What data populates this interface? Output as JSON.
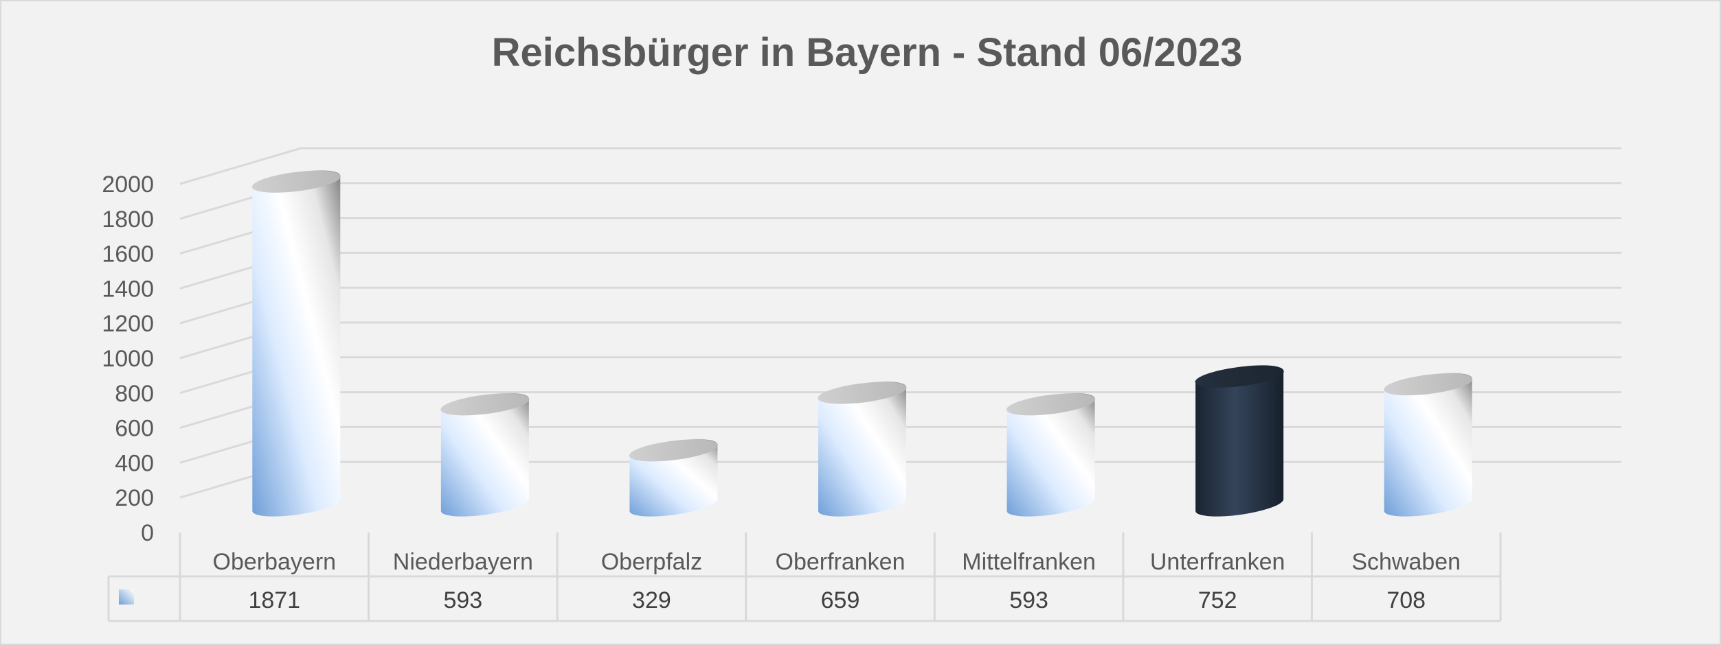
{
  "chart_data": {
    "type": "bar",
    "title": "Reichsbürger in Bayern  - Stand 06/2023",
    "categories": [
      "Oberbayern",
      "Niederbayern",
      "Oberpfalz",
      "Oberfranken",
      "Mittelfranken",
      "Unterfranken",
      "Schwaben"
    ],
    "series": [
      {
        "values": [
          1871,
          593,
          329,
          659,
          593,
          752,
          708
        ]
      }
    ],
    "highlight_index": 5,
    "ylim": [
      0,
      2000
    ],
    "yticks": [
      "0",
      "200",
      "400",
      "600",
      "800",
      "1000",
      "1200",
      "1400",
      "1600",
      "1800",
      "2000"
    ],
    "grid": true,
    "data_table": true,
    "style": "3d-cylinder",
    "colors": {
      "bar_light": "#ffffff",
      "bar_blue": "#8fb4de",
      "bar_shadow": "#8a8a8a",
      "highlight_dark": "#1f2b3a",
      "highlight_mid": "#34445a",
      "background": "#f2f2f2",
      "grid": "#d9d9d9",
      "text": "#595959"
    }
  }
}
